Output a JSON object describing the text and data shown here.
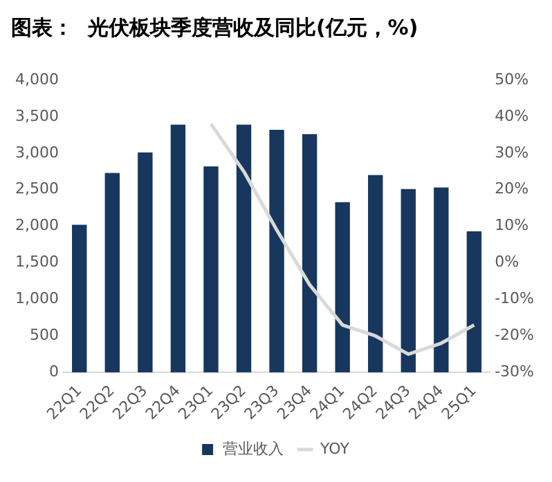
{
  "chart_data": {
    "type": "bar",
    "title": "图表：  光伏板块季度营收及同比(亿元，%)",
    "categories": [
      "22Q1",
      "22Q2",
      "22Q3",
      "22Q4",
      "23Q1",
      "23Q2",
      "23Q3",
      "23Q4",
      "24Q1",
      "24Q2",
      "24Q3",
      "24Q4",
      "25Q1"
    ],
    "series": [
      {
        "name": "营业收入",
        "color": "#17375e",
        "values": [
          2020,
          2730,
          3010,
          3390,
          2820,
          3390,
          3320,
          3260,
          2330,
          2700,
          2510,
          2530,
          1930
        ]
      },
      {
        "name": "YOY",
        "type": "line",
        "axis": "y2",
        "color": "#d9d9d9",
        "values": [
          null,
          null,
          null,
          null,
          38,
          25,
          9,
          -6,
          -17,
          -20,
          -25,
          -22,
          -17
        ]
      }
    ],
    "ylim": [
      0,
      4000
    ],
    "yticks": [
      0,
      500,
      {
        "value": 1000,
        "label": "1,000"
      },
      {
        "value": 1500,
        "label": "1,500"
      },
      {
        "value": 2000,
        "label": "2,000"
      },
      {
        "value": 2500,
        "label": "2,500"
      },
      {
        "value": 3000,
        "label": "3,000"
      },
      {
        "value": 3500,
        "label": "3,500"
      },
      {
        "value": 4000,
        "label": "4,000"
      }
    ],
    "y2lim": [
      -30,
      50
    ],
    "y2ticks": [
      {
        "value": -30,
        "label": "-30%"
      },
      {
        "value": -20,
        "label": "-20%"
      },
      {
        "value": -10,
        "label": "-10%"
      },
      {
        "value": 0,
        "label": "0%"
      },
      {
        "value": 10,
        "label": "10%"
      },
      {
        "value": 20,
        "label": "20%"
      },
      {
        "value": 30,
        "label": "30%"
      },
      {
        "value": 40,
        "label": "40%"
      },
      {
        "value": 50,
        "label": "50%"
      }
    ],
    "legend": "bottom",
    "grid": false,
    "marker": "none"
  }
}
